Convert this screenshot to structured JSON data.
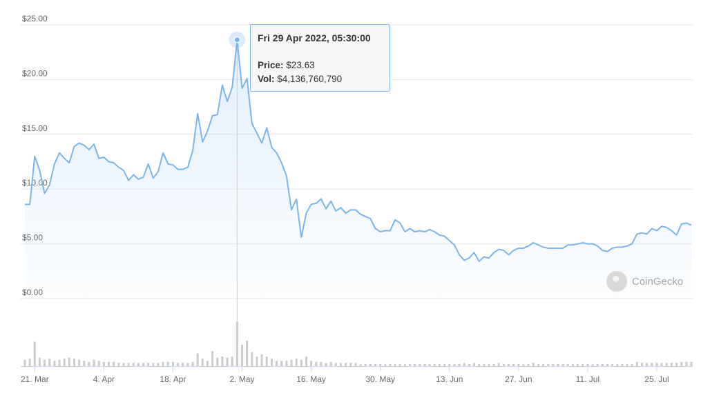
{
  "chart_data": {
    "type": "area",
    "title": "",
    "xlabel": "",
    "ylabel": "",
    "ylim": [
      0,
      25
    ],
    "y_ticks": [
      "$0.00",
      "$5.00",
      "$10.00",
      "$15.00",
      "$20.00",
      "$25.00"
    ],
    "x_ticks": [
      "21. Mar",
      "4. Apr",
      "18. Apr",
      "2. May",
      "16. May",
      "30. May",
      "13. Jun",
      "27. Jun",
      "11. Jul",
      "25. Jul"
    ],
    "x_start": "2022-03-19",
    "grid": true,
    "legend": "none",
    "line_color": "#7cb5ec",
    "volume_color": "#cccccc",
    "series": [
      {
        "name": "Price",
        "values": [
          8.6,
          8.6,
          13.0,
          11.7,
          9.6,
          10.4,
          12.3,
          13.3,
          12.8,
          12.4,
          13.9,
          14.2,
          14.0,
          13.6,
          14.1,
          12.8,
          12.9,
          12.5,
          12.4,
          12.0,
          11.7,
          10.8,
          11.3,
          10.9,
          11.1,
          12.3,
          11.0,
          11.6,
          13.3,
          12.3,
          12.2,
          11.8,
          11.8,
          12.0,
          13.5,
          16.9,
          14.3,
          15.3,
          16.7,
          16.8,
          19.5,
          18.0,
          19.3,
          23.63,
          19.2,
          20.1,
          16.0,
          15.1,
          14.2,
          15.6,
          13.8,
          13.3,
          12.4,
          11.2,
          8.1,
          9.1,
          5.6,
          7.8,
          8.6,
          8.7,
          9.1,
          8.2,
          8.9,
          8.0,
          8.3,
          7.8,
          8.1,
          8.1,
          7.7,
          7.5,
          7.3,
          6.4,
          6.1,
          6.2,
          6.2,
          7.2,
          6.9,
          6.1,
          6.4,
          6.1,
          6.2,
          6.1,
          6.3,
          6.1,
          5.8,
          5.7,
          5.3,
          4.9,
          4.0,
          3.5,
          3.7,
          4.2,
          3.4,
          3.8,
          3.7,
          4.2,
          4.5,
          4.4,
          4.0,
          4.4,
          4.6,
          4.6,
          4.8,
          5.1,
          4.9,
          4.7,
          4.6,
          4.6,
          4.6,
          4.6,
          4.9,
          4.9,
          5.0,
          5.1,
          5.0,
          5.0,
          4.8,
          4.4,
          4.3,
          4.6,
          4.7,
          4.7,
          4.8,
          5.0,
          5.9,
          6.0,
          5.9,
          6.4,
          6.2,
          6.6,
          6.5,
          6.2,
          5.8,
          6.8,
          6.9,
          6.7
        ]
      },
      {
        "name": "Vol",
        "values": [
          0.6,
          0.7,
          2.3,
          0.8,
          0.6,
          0.7,
          0.5,
          0.6,
          0.7,
          0.8,
          0.7,
          0.6,
          0.5,
          0.4,
          0.6,
          0.5,
          0.4,
          0.4,
          0.4,
          0.3,
          0.3,
          0.3,
          0.3,
          0.3,
          0.3,
          0.3,
          0.3,
          0.3,
          0.4,
          0.4,
          0.4,
          0.3,
          0.3,
          0.3,
          0.4,
          1.2,
          0.7,
          0.5,
          1.4,
          0.8,
          0.9,
          0.8,
          0.9,
          4.14,
          2.0,
          2.4,
          1.3,
          0.9,
          1.1,
          0.9,
          0.7,
          0.5,
          0.5,
          0.5,
          0.6,
          0.7,
          0.6,
          0.9,
          0.5,
          0.4,
          0.4,
          0.3,
          0.4,
          0.3,
          0.3,
          0.3,
          0.3,
          0.3,
          0.2,
          0.2,
          0.2,
          0.2,
          0.2,
          0.2,
          0.2,
          0.2,
          0.2,
          0.2,
          0.2,
          0.2,
          0.2,
          0.2,
          0.2,
          0.2,
          0.2,
          0.2,
          0.2,
          0.2,
          0.2,
          0.3,
          0.2,
          0.3,
          0.2,
          0.2,
          0.2,
          0.2,
          0.3,
          0.2,
          0.2,
          0.2,
          0.2,
          0.2,
          0.2,
          0.3,
          0.2,
          0.2,
          0.2,
          0.2,
          0.2,
          0.2,
          0.2,
          0.2,
          0.2,
          0.2,
          0.2,
          0.2,
          0.2,
          0.2,
          0.2,
          0.2,
          0.2,
          0.2,
          0.2,
          0.2,
          0.4,
          0.3,
          0.3,
          0.3,
          0.3,
          0.3,
          0.3,
          0.3,
          0.3,
          0.4,
          0.4,
          0.4
        ]
      }
    ],
    "highlight_index": 43
  },
  "tooltip": {
    "date": "Fri 29 Apr 2022, 05:30:00",
    "price_label": "Price:",
    "price_value": "$23.63",
    "vol_label": "Vol:",
    "vol_value": "$4,136,760,790"
  },
  "watermark": {
    "text": "CoinGecko",
    "icon": "coingecko-logo-icon"
  }
}
